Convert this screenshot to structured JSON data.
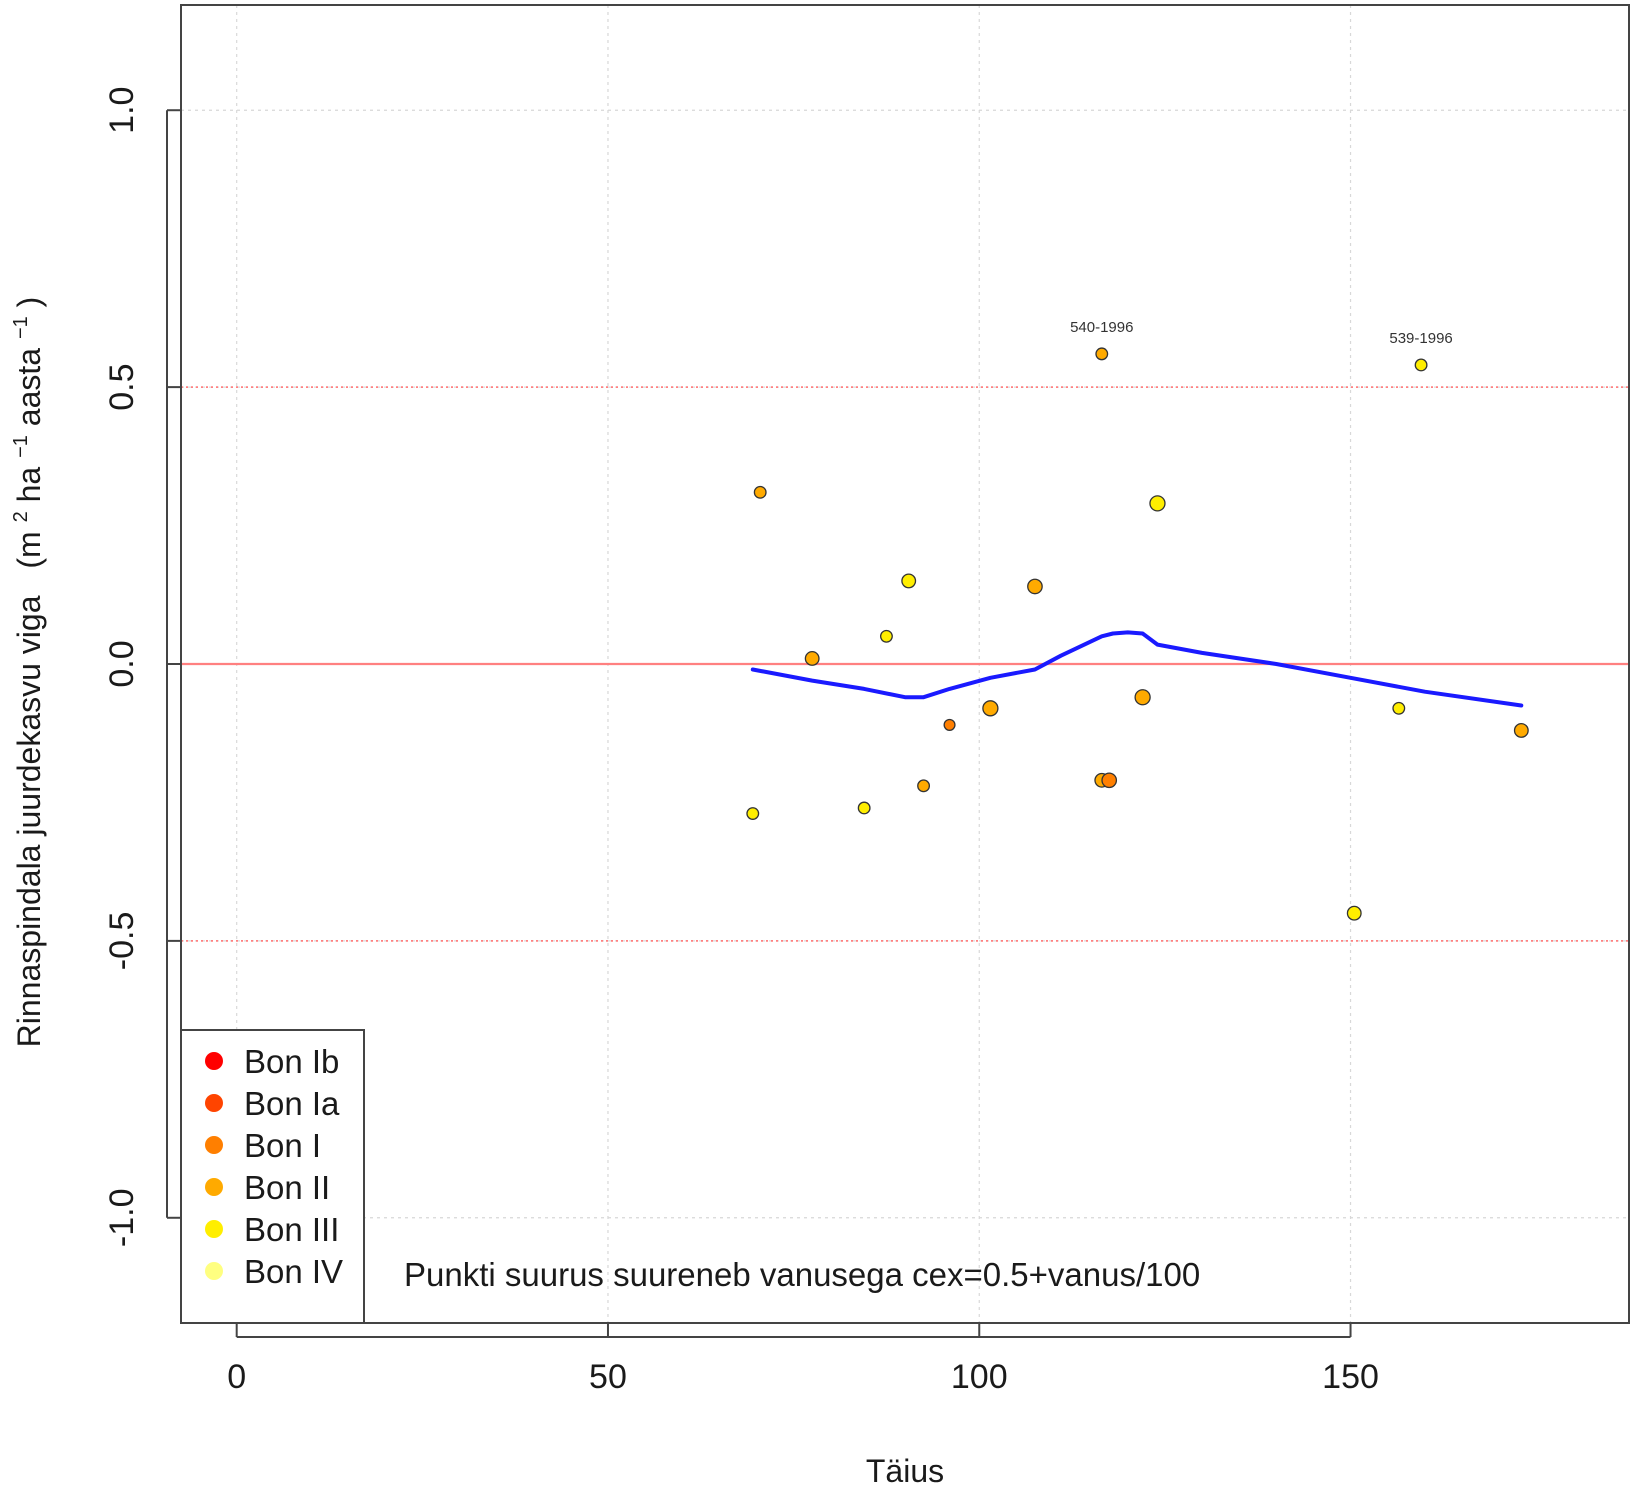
{
  "chart_data": {
    "type": "scatter",
    "title": "",
    "xlabel": "Täius",
    "ylabel": {
      "main": "Rinnaspindala juurdekasvu viga",
      "unit_open": "(m",
      "sup1": "2",
      "mid1": "ha",
      "sup2": "−1",
      "mid2": "aasta",
      "sup3": "−1",
      "unit_close": ")"
    },
    "xlim": [
      -7.5,
      187.5
    ],
    "ylim": [
      -1.19,
      1.19
    ],
    "x_ticks": [
      0,
      50,
      100,
      150
    ],
    "x_tick_labels": [
      "0",
      "50",
      "100",
      "150"
    ],
    "y_ticks": [
      -1.0,
      -0.5,
      0.0,
      0.5,
      1.0
    ],
    "y_tick_labels": [
      "-1.0",
      "-0.5",
      "0.0",
      "0.5",
      "1.0"
    ],
    "grid": true,
    "reference_lines": [
      {
        "y": 0.0,
        "style": "solid",
        "color": "#ff8080"
      },
      {
        "y": 0.5,
        "style": "dotted",
        "color": "#ff8080"
      },
      {
        "y": -0.5,
        "style": "dotted",
        "color": "#ff8080"
      }
    ],
    "colors": {
      "Bon Ib": "#ff0000",
      "Bon Ia": "#ff4400",
      "Bon I": "#ff7f00",
      "Bon II": "#ffaa00",
      "Bon III": "#ffee00",
      "Bon IV": "#ffff80"
    },
    "points": [
      {
        "x": 70.5,
        "y": 0.31,
        "bon": "Bon II",
        "age": 25
      },
      {
        "x": 69.5,
        "y": -0.27,
        "bon": "Bon III",
        "age": 25
      },
      {
        "x": 77.5,
        "y": 0.01,
        "bon": "Bon II",
        "age": 40
      },
      {
        "x": 84.5,
        "y": -0.26,
        "bon": "Bon III",
        "age": 25
      },
      {
        "x": 87.5,
        "y": 0.05,
        "bon": "Bon III",
        "age": 25
      },
      {
        "x": 90.5,
        "y": 0.15,
        "bon": "Bon III",
        "age": 40
      },
      {
        "x": 92.5,
        "y": -0.22,
        "bon": "Bon II",
        "age": 25
      },
      {
        "x": 96.0,
        "y": -0.11,
        "bon": "Bon I",
        "age": 20
      },
      {
        "x": 101.5,
        "y": -0.08,
        "bon": "Bon II",
        "age": 50
      },
      {
        "x": 107.5,
        "y": 0.14,
        "bon": "Bon II",
        "age": 45
      },
      {
        "x": 116.5,
        "y": 0.56,
        "bon": "Bon II",
        "age": 25,
        "label": "540-1996"
      },
      {
        "x": 116.5,
        "y": -0.21,
        "bon": "Bon II",
        "age": 40
      },
      {
        "x": 117.5,
        "y": -0.21,
        "bon": "Bon I",
        "age": 45
      },
      {
        "x": 122.0,
        "y": -0.06,
        "bon": "Bon II",
        "age": 50
      },
      {
        "x": 124.0,
        "y": 0.29,
        "bon": "Bon III",
        "age": 50
      },
      {
        "x": 150.5,
        "y": -0.45,
        "bon": "Bon III",
        "age": 40
      },
      {
        "x": 156.5,
        "y": -0.08,
        "bon": "Bon III",
        "age": 25
      },
      {
        "x": 159.5,
        "y": 0.54,
        "bon": "Bon III",
        "age": 25,
        "label": "539-1996"
      },
      {
        "x": 173.0,
        "y": -0.12,
        "bon": "Bon II",
        "age": 40
      }
    ],
    "smooth_line": {
      "color": "#1a1aff",
      "x": [
        69.5,
        77.5,
        84.5,
        90.0,
        92.5,
        96.0,
        101.5,
        107.5,
        111.0,
        116.5,
        118.0,
        120.0,
        122.0,
        124.0,
        130.0,
        140.0,
        150.0,
        160.0,
        173.0
      ],
      "y": [
        -0.01,
        -0.03,
        -0.045,
        -0.06,
        -0.06,
        -0.045,
        -0.025,
        -0.01,
        0.015,
        0.05,
        0.055,
        0.057,
        0.055,
        0.035,
        0.02,
        0.0,
        -0.025,
        -0.05,
        -0.075
      ]
    },
    "legend": {
      "position": "bottom-left",
      "entries": [
        "Bon Ib",
        "Bon Ia",
        "Bon I",
        "Bon II",
        "Bon III",
        "Bon IV"
      ]
    },
    "annotation": "Punkti suurus suureneb vanusega cex=0.5+vanus/100"
  }
}
